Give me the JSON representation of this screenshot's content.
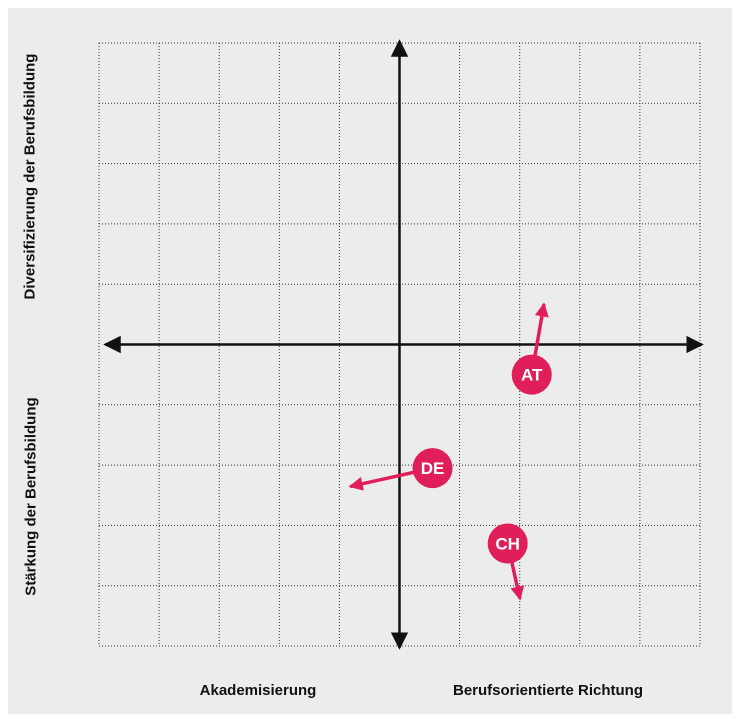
{
  "chart_data": {
    "type": "scatter",
    "grid": true,
    "xlim": [
      -5,
      5
    ],
    "ylim": [
      -5,
      5
    ],
    "axis_labels": {
      "x_left": "Akademisierung",
      "x_right": "Berufsorientierte Richtung",
      "y_top": "Diversifizierung der Berufsbildung",
      "y_bottom": "Stärkung der Berufsbildung"
    },
    "points": [
      {
        "label": "AT",
        "x": 2.2,
        "y": -0.5,
        "arrow_to": {
          "x": 2.4,
          "y": 0.65
        }
      },
      {
        "label": "DE",
        "x": 0.55,
        "y": -2.05,
        "arrow_to": {
          "x": -0.8,
          "y": -2.35
        }
      },
      {
        "label": "CH",
        "x": 1.8,
        "y": -3.3,
        "arrow_to": {
          "x": 2.0,
          "y": -4.2
        }
      }
    ],
    "colors": {
      "marker": "#e01e5a",
      "marker_text": "#ffffff",
      "axis": "#111111",
      "grid": "#333333",
      "background": "#ececec"
    }
  }
}
